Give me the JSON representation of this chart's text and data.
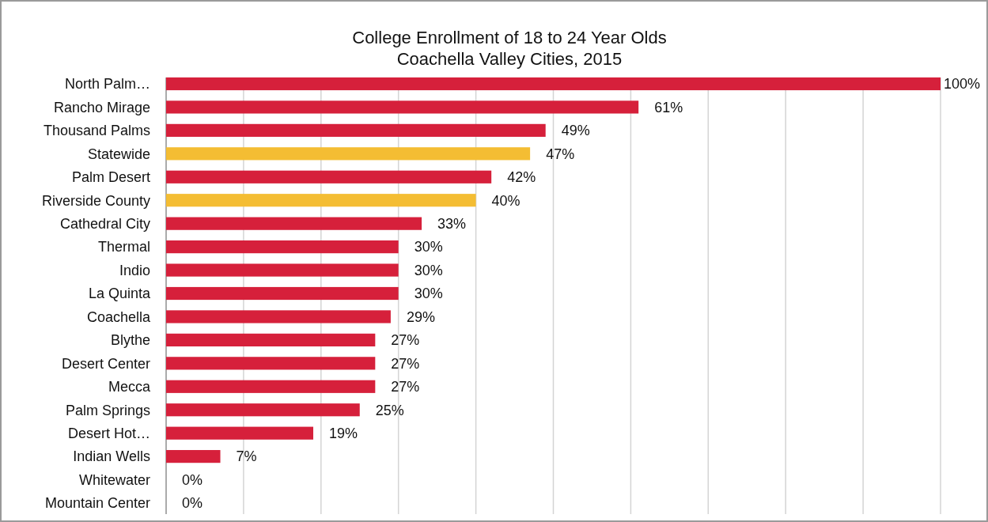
{
  "chart_data": {
    "type": "bar",
    "orientation": "horizontal",
    "title": "College Enrollment of 18 to 24 Year Olds",
    "subtitle": "Coachella Valley Cities, 2015",
    "categories": [
      "North Palm…",
      "Rancho Mirage",
      "Thousand Palms",
      "Statewide",
      "Palm Desert",
      "Riverside County",
      "Cathedral City",
      "Thermal",
      "Indio",
      "La Quinta",
      "Coachella",
      "Blythe",
      "Desert Center",
      "Mecca",
      "Palm Springs",
      "Desert Hot…",
      "Indian Wells",
      "Whitewater",
      "Mountain Center"
    ],
    "values": [
      100,
      61,
      49,
      47,
      42,
      40,
      33,
      30,
      30,
      30,
      29,
      27,
      27,
      27,
      25,
      19,
      7,
      0,
      0
    ],
    "value_labels": [
      "100%",
      "61%",
      "49%",
      "47%",
      "42%",
      "40%",
      "33%",
      "30%",
      "30%",
      "30%",
      "29%",
      "27%",
      "27%",
      "27%",
      "25%",
      "19%",
      "7%",
      "0%",
      "0%"
    ],
    "colors": [
      "#d6203b",
      "#d6203b",
      "#d6203b",
      "#f4bd33",
      "#d6203b",
      "#f4bd33",
      "#d6203b",
      "#d6203b",
      "#d6203b",
      "#d6203b",
      "#d6203b",
      "#d6203b",
      "#d6203b",
      "#d6203b",
      "#d6203b",
      "#d6203b",
      "#d6203b",
      "#d6203b",
      "#d6203b"
    ],
    "xlim": [
      0,
      100
    ],
    "xticks": [
      {
        "value": 0,
        "label": null
      },
      {
        "value": 10,
        "label": null
      },
      {
        "value": 20,
        "label": null
      },
      {
        "value": 30,
        "label": null
      },
      {
        "value": 40,
        "label": null
      },
      {
        "value": 50,
        "label": null
      },
      {
        "value": 60,
        "label": null
      },
      {
        "value": 70,
        "label": null
      },
      {
        "value": 80,
        "label": null
      },
      {
        "value": 90,
        "label": null
      },
      {
        "value": 100,
        "label": null
      }
    ],
    "grid": "x",
    "tick_labels": "y"
  }
}
